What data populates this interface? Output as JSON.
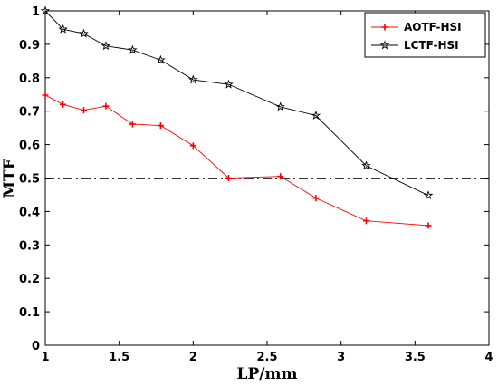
{
  "chart_data": {
    "type": "line",
    "xlabel": "LP/mm",
    "ylabel": "MTF",
    "xlim": [
      1,
      4
    ],
    "ylim": [
      0,
      1
    ],
    "xticks": [
      "1",
      "1.5",
      "2",
      "2.5",
      "3",
      "3.5",
      "4"
    ],
    "yticks": [
      "0",
      "0.1",
      "0.2",
      "0.3",
      "0.4",
      "0.5",
      "0.6",
      "0.7",
      "0.8",
      "0.9",
      "1"
    ],
    "grid": false,
    "legend_position": "top-right",
    "reference_line": {
      "y": 0.5,
      "style": "dash-dot"
    },
    "series": [
      {
        "name": "AOTF-HSI",
        "color": "#ff0000",
        "marker": "plus",
        "x": [
          1.0,
          1.12,
          1.26,
          1.41,
          1.59,
          1.78,
          2.0,
          2.24,
          2.59,
          2.83,
          3.17,
          3.59
        ],
        "y": [
          0.748,
          0.72,
          0.703,
          0.715,
          0.661,
          0.657,
          0.597,
          0.5,
          0.505,
          0.44,
          0.372,
          0.358
        ]
      },
      {
        "name": "LCTF-HSI",
        "color": "#000000",
        "marker": "star",
        "x": [
          1.0,
          1.12,
          1.26,
          1.41,
          1.59,
          1.78,
          2.0,
          2.24,
          2.59,
          2.83,
          3.17,
          3.59
        ],
        "y": [
          1.0,
          0.945,
          0.932,
          0.895,
          0.883,
          0.853,
          0.794,
          0.78,
          0.713,
          0.687,
          0.537,
          0.448
        ]
      }
    ]
  }
}
